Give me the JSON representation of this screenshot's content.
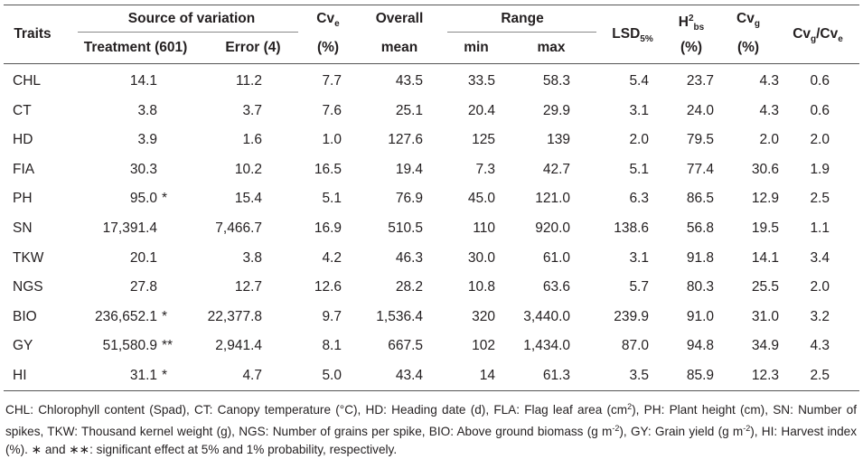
{
  "header": {
    "traits": "Traits",
    "source": "Source of variation",
    "treatment": "Treatment (601)",
    "error": "Error (4)",
    "cve": {
      "main": "Cv",
      "sub": "e",
      "unit": "(%)"
    },
    "overall": "Overall",
    "mean": "mean",
    "range": "Range",
    "min": "min",
    "max": "max",
    "lsd": {
      "main": "LSD",
      "sub": "5%"
    },
    "h2": {
      "main": "H",
      "sup": "2",
      "sub": "bs",
      "unit": "(%)"
    },
    "cvg": {
      "main": "Cv",
      "sub": "g",
      "unit": "(%)"
    },
    "ratio": {
      "main": "Cv",
      "sub": "g",
      "main2": "/Cv",
      "sub2": "e"
    }
  },
  "table": {
    "rows": [
      {
        "trait": "CHL",
        "treatment": "14.1",
        "error": "11.2",
        "cve": "7.7",
        "mean": "43.5",
        "min": "33.5",
        "max": "58.3",
        "lsd": "5.4",
        "h2": "23.7",
        "cvg": "4.3",
        "ratio": "0.6"
      },
      {
        "trait": "CT",
        "treatment": "3.8",
        "error": "3.7",
        "cve": "7.6",
        "mean": "25.1",
        "min": "20.4",
        "max": "29.9",
        "lsd": "3.1",
        "h2": "24.0",
        "cvg": "4.3",
        "ratio": "0.6"
      },
      {
        "trait": "HD",
        "treatment": "3.9",
        "error": "1.6",
        "cve": "1.0",
        "mean": "127.6",
        "min": "125",
        "max": "139",
        "lsd": "2.0",
        "h2": "79.5",
        "cvg": "2.0",
        "ratio": "2.0"
      },
      {
        "trait": "FIA",
        "treatment": "30.3",
        "error": "10.2",
        "cve": "16.5",
        "mean": "19.4",
        "min": "7.3",
        "max": "42.7",
        "lsd": "5.1",
        "h2": "77.4",
        "cvg": "30.6",
        "ratio": "1.9"
      },
      {
        "trait": "PH",
        "treatment": "95.0",
        "sig": "*",
        "error": "15.4",
        "cve": "5.1",
        "mean": "76.9",
        "min": "45.0",
        "max": "121.0",
        "lsd": "6.3",
        "h2": "86.5",
        "cvg": "12.9",
        "ratio": "2.5"
      },
      {
        "trait": "SN",
        "treatment": "17,391.4",
        "error": "7,466.7",
        "cve": "16.9",
        "mean": "510.5",
        "min": "110",
        "max": "920.0",
        "lsd": "138.6",
        "h2": "56.8",
        "cvg": "19.5",
        "ratio": "1.1"
      },
      {
        "trait": "TKW",
        "treatment": "20.1",
        "error": "3.8",
        "cve": "4.2",
        "mean": "46.3",
        "min": "30.0",
        "max": "61.0",
        "lsd": "3.1",
        "h2": "91.8",
        "cvg": "14.1",
        "ratio": "3.4"
      },
      {
        "trait": "NGS",
        "treatment": "27.8",
        "error": "12.7",
        "cve": "12.6",
        "mean": "28.2",
        "min": "10.8",
        "max": "63.6",
        "lsd": "5.7",
        "h2": "80.3",
        "cvg": "25.5",
        "ratio": "2.0"
      },
      {
        "trait": "BIO",
        "treatment": "236,652.1",
        "sig": "*",
        "error": "22,377.8",
        "cve": "9.7",
        "mean": "1,536.4",
        "min": "320",
        "max": "3,440.0",
        "lsd": "239.9",
        "h2": "91.0",
        "cvg": "31.0",
        "ratio": "3.2"
      },
      {
        "trait": "GY",
        "treatment": "51,580.9",
        "sig": "**",
        "error": "2,941.4",
        "cve": "8.1",
        "mean": "667.5",
        "min": "102",
        "max": "1,434.0",
        "lsd": "87.0",
        "h2": "94.8",
        "cvg": "34.9",
        "ratio": "4.3"
      },
      {
        "trait": "HI",
        "treatment": "31.1",
        "sig": "*",
        "error": "4.7",
        "cve": "5.0",
        "mean": "43.4",
        "min": "14",
        "max": "61.3",
        "lsd": "3.5",
        "h2": "85.9",
        "cvg": "12.3",
        "ratio": "2.5"
      }
    ]
  },
  "footnote": [
    {
      "text": "CHL: Chlorophyll content (Spad), CT: Canopy temperature (°C), HD: Heading date (d), FLA: Flag leaf area (cm"
    },
    {
      "sup": "2"
    },
    {
      "text": "), PH: Plant height (cm), SN: Number of spikes, TKW: Thousand kernel weight (g), NGS: Number of grains per spike, BIO: Above ground biomass (g m"
    },
    {
      "sup": "-2"
    },
    {
      "text": "), GY: Grain yield (g m"
    },
    {
      "sup": "-2"
    },
    {
      "text": "), HI: Harvest index (%). ∗ and ∗∗: significant effect at 5% and 1% probability, respectively."
    }
  ]
}
